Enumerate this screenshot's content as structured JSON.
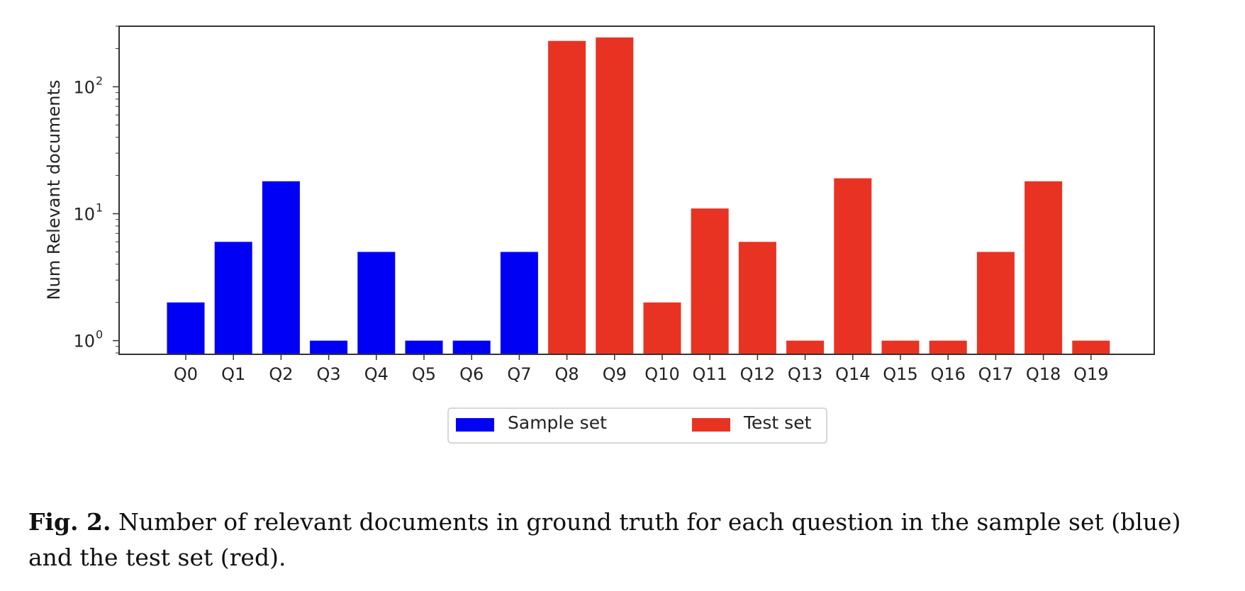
{
  "chart_data": {
    "type": "bar",
    "categories": [
      "Q0",
      "Q1",
      "Q2",
      "Q3",
      "Q4",
      "Q5",
      "Q6",
      "Q7",
      "Q8",
      "Q9",
      "Q10",
      "Q11",
      "Q12",
      "Q13",
      "Q14",
      "Q15",
      "Q16",
      "Q17",
      "Q18",
      "Q19"
    ],
    "values": [
      2,
      6,
      18,
      1,
      5,
      1,
      1,
      5,
      230,
      245,
      2,
      11,
      6,
      1,
      19,
      1,
      1,
      5,
      18,
      1
    ],
    "series_index": [
      0,
      0,
      0,
      0,
      0,
      0,
      0,
      0,
      1,
      1,
      1,
      1,
      1,
      1,
      1,
      1,
      1,
      1,
      1,
      1
    ],
    "series": [
      {
        "name": "Sample set",
        "color": "#0000f5"
      },
      {
        "name": "Test set",
        "color": "#e83323"
      }
    ],
    "ylabel": "Num Relevant documents",
    "xlabel": "",
    "yscale": "log",
    "ylim": [
      0.78,
      300
    ],
    "yticks": [
      {
        "value": 1,
        "base": "10",
        "exp": "0"
      },
      {
        "value": 10,
        "base": "10",
        "exp": "1"
      },
      {
        "value": 100,
        "base": "10",
        "exp": "2"
      }
    ],
    "legend_position": "bottom-center",
    "grid": false
  },
  "caption": {
    "label": "Fig. 2.",
    "text": "Number of relevant documents in ground truth for each question in the sample set (blue) and the test set (red)."
  }
}
